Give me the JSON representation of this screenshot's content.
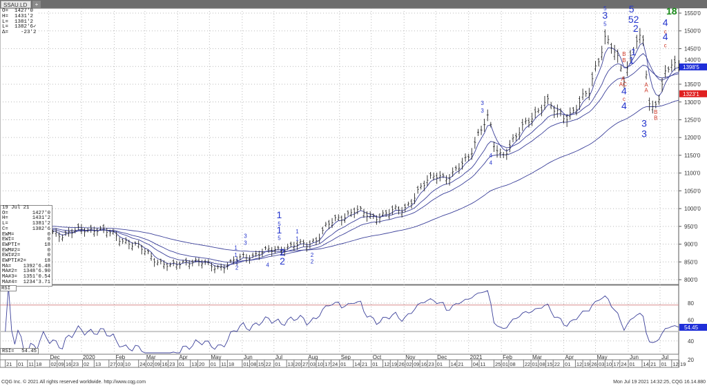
{
  "tabs": [
    {
      "label": "SSAU.LD"
    },
    {
      "label": "+"
    }
  ],
  "readout": {
    "open": "O=  1427'0",
    "high": "H=  1431'2",
    "low": "L=  1381'2",
    "last": "L=  1382'6✓",
    "delta": "Δ=    -23'2"
  },
  "databox": {
    "date": "19 Jul 21",
    "rows": [
      {
        "k": "O=",
        "v": "1427'0"
      },
      {
        "k": "H=",
        "v": "1431'2"
      },
      {
        "k": "L=",
        "v": "1381'2"
      },
      {
        "k": "C=",
        "v": "1382'6"
      },
      {
        "k": "EWM=",
        "v": "0"
      },
      {
        "k": "EWI=",
        "v": "0"
      },
      {
        "k": "EWPTI=",
        "v": "18"
      },
      {
        "k": "EWM#2=",
        "v": "0"
      },
      {
        "k": "EWI#2=",
        "v": "0"
      },
      {
        "k": "EWPTI#2=",
        "v": "18"
      },
      {
        "k": "MA=",
        "v": "1392'6.48"
      },
      {
        "k": "MA#2=",
        "v": "1348'6.90"
      },
      {
        "k": "MA#3=",
        "v": "1351'0.54"
      },
      {
        "k": "MA#4=",
        "v": "1234'3.71"
      }
    ]
  },
  "rsi": {
    "title": "RSI",
    "label": "RSI=",
    "value": "54.45"
  },
  "price_tags": [
    {
      "text": "1398'5",
      "price": 1398.6,
      "color": "#1f2fd8"
    },
    {
      "text": "1323'1",
      "price": 1323.1,
      "color": "#e02020"
    }
  ],
  "rsi_tag": {
    "text": "54.45",
    "value": 54.45,
    "color": "#1f2fd8"
  },
  "footer": {
    "left": "CQG Inc. © 2021 All rights reserved worldwide. http://www.cqg.com",
    "right": "Mon Jul 19 2021 14:32:25, CQG 16.14.880"
  },
  "colors": {
    "bars": "#222222",
    "ma": "#3a3f99",
    "rsi": "#3a3f99",
    "wave_blue": "#2233cc",
    "wave_red": "#cc3322",
    "wave_green": "#1a8a1a",
    "grid": "#b8b8b8"
  },
  "chart_data": {
    "type": "line",
    "title": "SSAU.LD",
    "price_axis": {
      "ticks": [
        "1550'0",
        "1500'0",
        "1450'0",
        "1400'0",
        "1350'0",
        "1300'0",
        "1250'0",
        "1200'0",
        "1150'0",
        "1100'0",
        "1050'0",
        "1000'0",
        "950'0",
        "900'0",
        "850'0",
        "800'0"
      ],
      "values": [
        1550,
        1500,
        1450,
        1400,
        1350,
        1300,
        1250,
        1200,
        1150,
        1100,
        1050,
        1000,
        950,
        900,
        850,
        800
      ],
      "ylim": [
        790,
        1560
      ]
    },
    "rsi_axis": {
      "ticks": [
        "80",
        "60",
        "40",
        "20"
      ],
      "values": [
        80,
        60,
        40,
        20
      ],
      "ref_lines": [
        80,
        50
      ]
    },
    "close_anchors": [
      [
        "2019-10-21",
        955
      ],
      [
        "2019-11-01",
        950
      ],
      [
        "2019-11-15",
        940
      ],
      [
        "2019-12-01",
        935
      ],
      [
        "2019-12-15",
        928
      ],
      [
        "2020-01-01",
        940
      ],
      [
        "2020-01-15",
        945
      ],
      [
        "2020-02-01",
        925
      ],
      [
        "2020-02-15",
        905
      ],
      [
        "2020-03-01",
        880
      ],
      [
        "2020-03-15",
        850
      ],
      [
        "2020-03-25",
        835
      ],
      [
        "2020-04-10",
        855
      ],
      [
        "2020-04-25",
        845
      ],
      [
        "2020-05-10",
        836
      ],
      [
        "2020-05-20",
        842
      ],
      [
        "2020-06-01",
        865
      ],
      [
        "2020-06-15",
        872
      ],
      [
        "2020-07-01",
        885
      ],
      [
        "2020-07-15",
        893
      ],
      [
        "2020-08-01",
        900
      ],
      [
        "2020-08-10",
        915
      ],
      [
        "2020-08-20",
        950
      ],
      [
        "2020-09-01",
        975
      ],
      [
        "2020-09-15",
        995
      ],
      [
        "2020-10-01",
        978
      ],
      [
        "2020-10-15",
        985
      ],
      [
        "2020-11-01",
        1000
      ],
      [
        "2020-11-15",
        1050
      ],
      [
        "2020-12-01",
        1100
      ],
      [
        "2020-12-15",
        1085
      ],
      [
        "2021-01-01",
        1150
      ],
      [
        "2021-01-10",
        1210
      ],
      [
        "2021-01-20",
        1255
      ],
      [
        "2021-01-25",
        1180
      ],
      [
        "2021-02-01",
        1150
      ],
      [
        "2021-02-15",
        1200
      ],
      [
        "2021-03-01",
        1260
      ],
      [
        "2021-03-15",
        1300
      ],
      [
        "2021-03-25",
        1270
      ],
      [
        "2021-04-05",
        1262
      ],
      [
        "2021-04-15",
        1290
      ],
      [
        "2021-04-25",
        1330
      ],
      [
        "2021-05-01",
        1400
      ],
      [
        "2021-05-10",
        1480
      ],
      [
        "2021-05-17",
        1450
      ],
      [
        "2021-05-28",
        1370
      ],
      [
        "2021-06-04",
        1440
      ],
      [
        "2021-06-10",
        1490
      ],
      [
        "2021-06-15",
        1460
      ],
      [
        "2021-06-22",
        1265
      ],
      [
        "2021-06-28",
        1300
      ],
      [
        "2021-07-05",
        1380
      ],
      [
        "2021-07-12",
        1410
      ],
      [
        "2021-07-19",
        1383
      ]
    ],
    "moving_averages": [
      "MA",
      "MA#2",
      "MA#3",
      "MA#4"
    ],
    "annotations": [
      {
        "t": "1",
        "d": "2020-07-06",
        "p": 973,
        "c": "blue",
        "s": "L"
      },
      {
        "t": "5",
        "d": "2020-07-06",
        "p": 952,
        "c": "blue",
        "s": "S"
      },
      {
        "t": "1",
        "d": "2020-07-06",
        "p": 930,
        "c": "blue",
        "s": "L"
      },
      {
        "t": "5",
        "d": "2020-07-06",
        "p": 912,
        "c": "blue",
        "s": "S"
      },
      {
        "t": "2",
        "d": "2020-07-09",
        "p": 868,
        "c": "blue",
        "s": "L"
      },
      {
        "t": "2",
        "d": "2020-07-09",
        "p": 843,
        "c": "blue",
        "s": "L"
      },
      {
        "t": "1",
        "d": "2020-07-23",
        "p": 930,
        "c": "blue",
        "s": "S"
      },
      {
        "t": "1",
        "d": "2020-07-23",
        "p": 910,
        "c": "blue",
        "s": "S"
      },
      {
        "t": "3",
        "d": "2020-06-04",
        "p": 918,
        "c": "blue",
        "s": "S"
      },
      {
        "t": "3",
        "d": "2020-06-04",
        "p": 898,
        "c": "blue",
        "s": "S"
      },
      {
        "t": "1",
        "d": "2020-05-26",
        "p": 885,
        "c": "blue",
        "s": "S"
      },
      {
        "t": "1",
        "d": "2020-05-26",
        "p": 864,
        "c": "blue",
        "s": "S"
      },
      {
        "t": "2",
        "d": "2020-05-27",
        "p": 846,
        "c": "blue",
        "s": "S"
      },
      {
        "t": "2",
        "d": "2020-05-27",
        "p": 828,
        "c": "blue",
        "s": "S"
      },
      {
        "t": "4",
        "d": "2020-06-25",
        "p": 836,
        "c": "blue",
        "s": "S"
      },
      {
        "t": "2",
        "d": "2020-08-06",
        "p": 864,
        "c": "blue",
        "s": "S"
      },
      {
        "t": "2",
        "d": "2020-08-06",
        "p": 846,
        "c": "blue",
        "s": "S"
      },
      {
        "t": "3",
        "d": "2021-01-14",
        "p": 1292,
        "c": "blue",
        "s": "S"
      },
      {
        "t": "3",
        "d": "2021-01-14",
        "p": 1270,
        "c": "blue",
        "s": "S"
      },
      {
        "t": "4",
        "d": "2021-01-22",
        "p": 1144,
        "c": "blue",
        "s": "S"
      },
      {
        "t": "4",
        "d": "2021-01-22",
        "p": 1124,
        "c": "blue",
        "s": "S"
      },
      {
        "t": "5",
        "d": "2021-05-10",
        "p": 1558,
        "c": "blue",
        "s": "S"
      },
      {
        "t": "3",
        "d": "2021-05-10",
        "p": 1534,
        "c": "blue",
        "s": "L"
      },
      {
        "t": "5",
        "d": "2021-05-10",
        "p": 1514,
        "c": "blue",
        "s": "S"
      },
      {
        "t": "5",
        "d": "2021-06-04",
        "p": 1552,
        "c": "blue",
        "s": "L"
      },
      {
        "t": "52",
        "d": "2021-06-06",
        "p": 1523,
        "c": "blue",
        "s": "L"
      },
      {
        "t": "2",
        "d": "2021-06-08",
        "p": 1498,
        "c": "blue",
        "s": "L"
      },
      {
        "t": "1",
        "d": "2021-06-06",
        "p": 1431,
        "c": "blue",
        "s": "L"
      },
      {
        "t": "1",
        "d": "2021-06-04",
        "p": 1408,
        "c": "blue",
        "s": "L"
      },
      {
        "t": "B",
        "d": "2021-05-28",
        "p": 1430,
        "c": "red",
        "s": "S"
      },
      {
        "t": "B",
        "d": "2021-05-28",
        "p": 1412,
        "c": "red",
        "s": "S"
      },
      {
        "t": "A",
        "d": "2021-05-27",
        "p": 1360,
        "c": "red",
        "s": "S"
      },
      {
        "t": "AC",
        "d": "2021-05-27",
        "p": 1344,
        "c": "red",
        "s": "S"
      },
      {
        "t": "4",
        "d": "2021-05-28",
        "p": 1322,
        "c": "blue",
        "s": "L"
      },
      {
        "t": "c",
        "d": "2021-05-28",
        "p": 1303,
        "c": "red",
        "s": "S"
      },
      {
        "t": "4",
        "d": "2021-05-28",
        "p": 1280,
        "c": "blue",
        "s": "L"
      },
      {
        "t": "A",
        "d": "2021-06-18",
        "p": 1343,
        "c": "red",
        "s": "S"
      },
      {
        "t": "A",
        "d": "2021-06-18",
        "p": 1328,
        "c": "red",
        "s": "S"
      },
      {
        "t": "B",
        "d": "2021-06-27",
        "p": 1266,
        "c": "red",
        "s": "S"
      },
      {
        "t": "B",
        "d": "2021-06-27",
        "p": 1250,
        "c": "red",
        "s": "S"
      },
      {
        "t": "3",
        "d": "2021-06-16",
        "p": 1230,
        "c": "blue",
        "s": "L"
      },
      {
        "t": "3",
        "d": "2021-06-16",
        "p": 1201,
        "c": "blue",
        "s": "L"
      },
      {
        "t": "4",
        "d": "2021-07-06",
        "p": 1514,
        "c": "blue",
        "s": "L"
      },
      {
        "t": "c",
        "d": "2021-07-06",
        "p": 1493,
        "c": "red",
        "s": "S"
      },
      {
        "t": "4",
        "d": "2021-07-06",
        "p": 1474,
        "c": "blue",
        "s": "L"
      },
      {
        "t": "c",
        "d": "2021-07-06",
        "p": 1454,
        "c": "red",
        "s": "S"
      },
      {
        "t": "18",
        "d": "2021-07-12",
        "p": 1546,
        "c": "green",
        "s": "L"
      }
    ],
    "time_axis": [
      {
        "m": "2019-10",
        "label": "",
        "days": [
          "21"
        ]
      },
      {
        "m": "2019-11",
        "label": "",
        "days": [
          "01",
          "11",
          "18"
        ]
      },
      {
        "m": "2019-12",
        "label": "Dec",
        "days": [
          "02",
          "09",
          "16",
          "23"
        ]
      },
      {
        "m": "2020-01",
        "label": "2020",
        "days": [
          "02",
          "13",
          "27"
        ]
      },
      {
        "m": "2020-02",
        "label": "Feb",
        "days": [
          "03",
          "10",
          "24"
        ]
      },
      {
        "m": "2020-03",
        "label": "Mar",
        "days": [
          "02",
          "09",
          "16",
          "23"
        ]
      },
      {
        "m": "2020-04",
        "label": "Apr",
        "days": [
          "01",
          "13",
          "20"
        ]
      },
      {
        "m": "2020-05",
        "label": "May",
        "days": [
          "01",
          "11",
          "18"
        ]
      },
      {
        "m": "2020-06",
        "label": "Jun",
        "days": [
          "01",
          "08",
          "15",
          "22"
        ]
      },
      {
        "m": "2020-07",
        "label": "Jul",
        "days": [
          "01",
          "13",
          "20",
          "27"
        ]
      },
      {
        "m": "2020-08",
        "label": "Aug",
        "days": [
          "03",
          "10",
          "17",
          "24"
        ]
      },
      {
        "m": "2020-09",
        "label": "Sep",
        "days": [
          "01",
          "14",
          "21"
        ]
      },
      {
        "m": "2020-10",
        "label": "Oct",
        "days": [
          "01",
          "12",
          "19",
          "26"
        ]
      },
      {
        "m": "2020-11",
        "label": "Nov",
        "days": [
          "02",
          "09",
          "16",
          "23"
        ]
      },
      {
        "m": "2020-12",
        "label": "Dec",
        "days": [
          "01",
          "14",
          "21"
        ]
      },
      {
        "m": "2021-01",
        "label": "2021",
        "days": [
          "04",
          "11",
          "25"
        ]
      },
      {
        "m": "2021-02",
        "label": "Feb",
        "days": [
          "01",
          "08",
          "22"
        ]
      },
      {
        "m": "2021-03",
        "label": "Mar",
        "days": [
          "01",
          "08",
          "15",
          "22"
        ]
      },
      {
        "m": "2021-04",
        "label": "Apr",
        "days": [
          "01",
          "12",
          "19",
          "26"
        ]
      },
      {
        "m": "2021-05",
        "label": "May",
        "days": [
          "03",
          "10",
          "17",
          "24"
        ]
      },
      {
        "m": "2021-06",
        "label": "Jun",
        "days": [
          "01",
          "14",
          "21"
        ]
      },
      {
        "m": "2021-07",
        "label": "Jul",
        "days": [
          "01",
          "12",
          "19"
        ]
      }
    ]
  }
}
